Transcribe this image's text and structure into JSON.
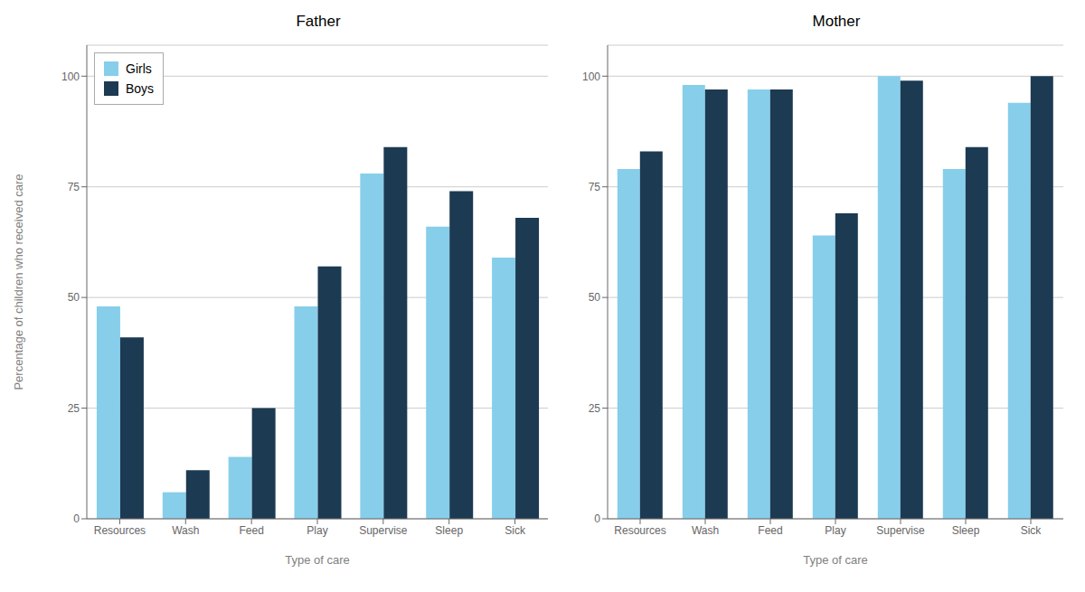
{
  "chart_data": [
    {
      "type": "bar",
      "title": "Father",
      "categories": [
        "Resources",
        "Wash",
        "Feed",
        "Play",
        "Supervise",
        "Sleep",
        "Sick"
      ],
      "series": [
        {
          "name": "Girls",
          "color": "#87CEEB",
          "values": [
            48,
            6,
            14,
            48,
            78,
            66,
            59
          ]
        },
        {
          "name": "Boys",
          "color": "#1C3A52",
          "values": [
            41,
            11,
            25,
            57,
            84,
            74,
            68
          ]
        }
      ],
      "xlabel": "Type of care",
      "ylabel": "Percentage of children who received care",
      "ylim": [
        0,
        107
      ],
      "yticks": [
        0,
        25,
        50,
        75,
        100
      ],
      "grid": true,
      "legend": "upper left"
    },
    {
      "type": "bar",
      "title": "Mother",
      "categories": [
        "Resources",
        "Wash",
        "Feed",
        "Play",
        "Supervise",
        "Sleep",
        "Sick"
      ],
      "series": [
        {
          "name": "Girls",
          "color": "#87CEEB",
          "values": [
            79,
            98,
            97,
            64,
            100,
            79,
            94
          ]
        },
        {
          "name": "Boys",
          "color": "#1C3A52",
          "values": [
            83,
            97,
            97,
            69,
            99,
            84,
            100
          ]
        }
      ],
      "xlabel": "Type of care",
      "ylim": [
        0,
        107
      ],
      "yticks": [
        0,
        25,
        50,
        75,
        100
      ],
      "grid": true
    }
  ]
}
